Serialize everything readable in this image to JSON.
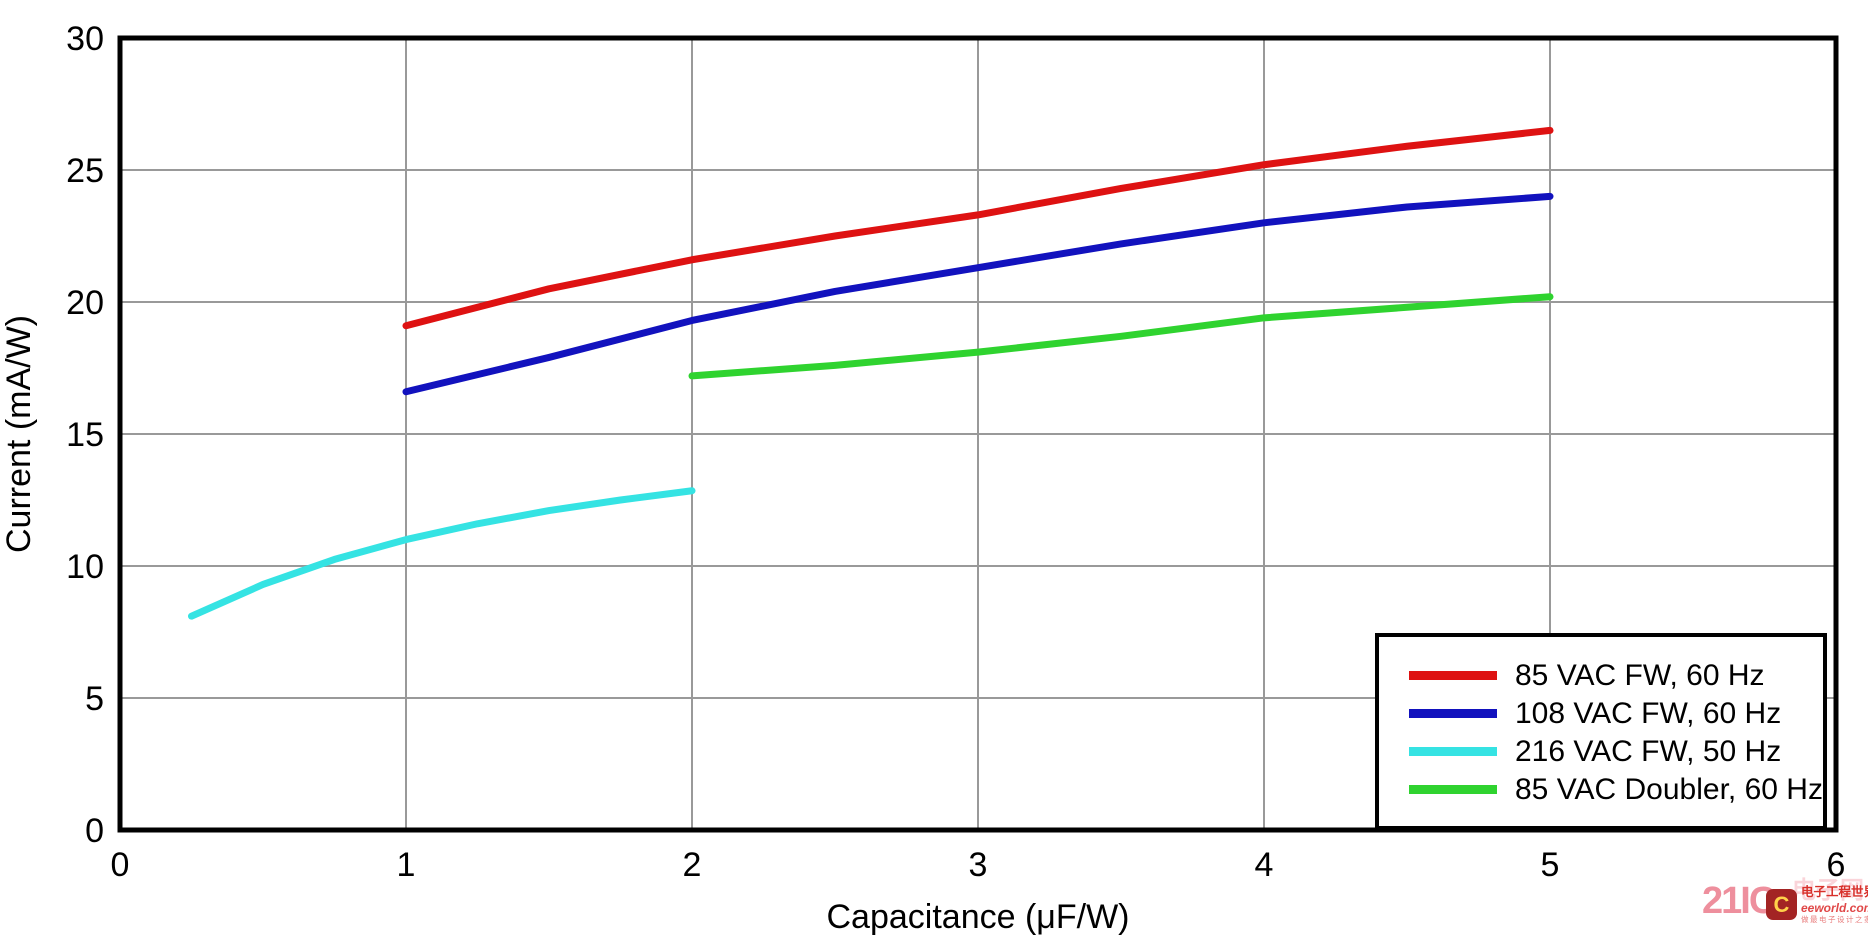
{
  "figure": {
    "background": "#ffffff",
    "grid_color": "#999999",
    "axis_color": "#000000"
  },
  "chart_data": {
    "type": "line",
    "title": "",
    "xlabel": "Capacitance (μF/W)",
    "ylabel": "Current (mA/W)",
    "xlim": [
      0,
      6
    ],
    "ylim": [
      0,
      30
    ],
    "xticks": [
      0,
      1,
      2,
      3,
      4,
      5,
      6
    ],
    "yticks": [
      0,
      5,
      10,
      15,
      20,
      25,
      30
    ],
    "grid": true,
    "legend_position": "bottom-right",
    "series": [
      {
        "name": "85 VAC FW, 60 Hz",
        "color": "#de1212",
        "points": [
          [
            1,
            19.1
          ],
          [
            1.5,
            20.5
          ],
          [
            2,
            21.6
          ],
          [
            2.5,
            22.5
          ],
          [
            3,
            23.3
          ],
          [
            3.5,
            24.3
          ],
          [
            4,
            25.2
          ],
          [
            4.5,
            25.9
          ],
          [
            5,
            26.5
          ]
        ]
      },
      {
        "name": "108 VAC FW, 60 Hz",
        "color": "#1212be",
        "points": [
          [
            1,
            16.6
          ],
          [
            1.5,
            17.9
          ],
          [
            2,
            19.3
          ],
          [
            2.5,
            20.4
          ],
          [
            3,
            21.3
          ],
          [
            3.5,
            22.2
          ],
          [
            4,
            23.0
          ],
          [
            4.5,
            23.6
          ],
          [
            5,
            24.0
          ]
        ]
      },
      {
        "name": "216 VAC FW, 50 Hz",
        "color": "#35e3e3",
        "points": [
          [
            0.25,
            8.1
          ],
          [
            0.5,
            9.3
          ],
          [
            0.75,
            10.25
          ],
          [
            1,
            11.0
          ],
          [
            1.25,
            11.6
          ],
          [
            1.5,
            12.1
          ],
          [
            1.75,
            12.5
          ],
          [
            2,
            12.85
          ]
        ]
      },
      {
        "name": "85 VAC Doubler, 60 Hz",
        "color": "#2fd32f",
        "points": [
          [
            2,
            17.2
          ],
          [
            2.5,
            17.6
          ],
          [
            3,
            18.1
          ],
          [
            3.5,
            18.7
          ],
          [
            4,
            19.4
          ],
          [
            4.5,
            19.8
          ],
          [
            5,
            20.2
          ]
        ]
      }
    ]
  },
  "watermark": {
    "brand": "21IC",
    "brand_faint": "电子网",
    "logo_letter": "C",
    "site_name": "电子工程世界",
    "site_url": "eeworld.com.cn",
    "slogan": "做最电子设计之家"
  }
}
